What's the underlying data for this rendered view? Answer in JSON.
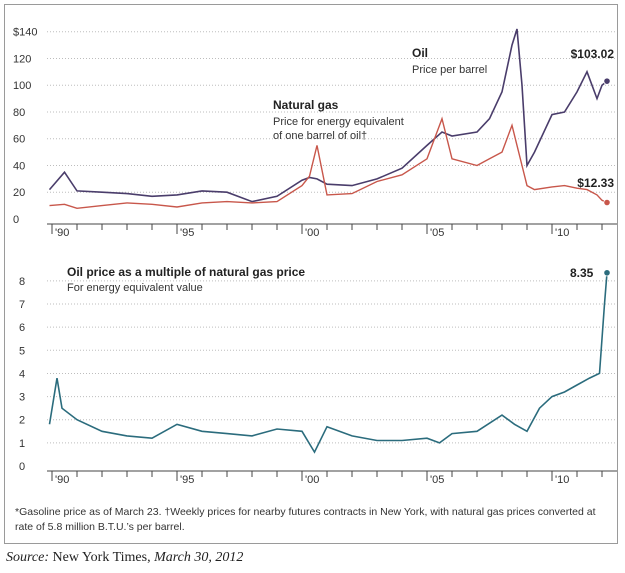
{
  "chart_data": [
    {
      "type": "line",
      "x": [
        1989.9,
        1990.5,
        1991,
        1992,
        1993,
        1994,
        1995,
        1996,
        1997,
        1998,
        1999,
        2000,
        2000.3,
        2000.6,
        2001,
        2002,
        2003,
        2004,
        2005,
        2005.6,
        2006,
        2007,
        2007.5,
        2008.0,
        2008.4,
        2008.6,
        2008.8,
        2009.0,
        2009.3,
        2010,
        2010.5,
        2011,
        2011.4,
        2011.8,
        2012.0,
        2012.2
      ],
      "series": [
        {
          "name": "Oil",
          "subtitle": "Price per barrel",
          "values": [
            22,
            35,
            21,
            20,
            19,
            17,
            18,
            21,
            20,
            13,
            17,
            29,
            31,
            30,
            26,
            25,
            30,
            38,
            55,
            65,
            62,
            65,
            75,
            95,
            130,
            142,
            100,
            40,
            50,
            78,
            80,
            95,
            110,
            90,
            100,
            103.02
          ],
          "end_label": "$103.02",
          "color": "#4a3d6b"
        },
        {
          "name": "Natural gas",
          "subtitle": "Price for energy equivalent of one barrel of oil†",
          "values": [
            10,
            11,
            8,
            10,
            12,
            11,
            9,
            12,
            13,
            12,
            13,
            25,
            32,
            55,
            18,
            19,
            28,
            33,
            45,
            75,
            45,
            40,
            45,
            50,
            70,
            55,
            40,
            25,
            22,
            24,
            25,
            23,
            22,
            18,
            14,
            12.33
          ],
          "end_label": "$12.33",
          "color": "#c8574b"
        }
      ],
      "yticks": [
        "$140",
        "120",
        "100",
        "80",
        "60",
        "40",
        "20",
        "0"
      ],
      "ylim": [
        0,
        145
      ],
      "xlim": [
        1989.8,
        2012.6
      ]
    },
    {
      "type": "line",
      "title": "Oil price as a multiple of natural gas price",
      "subtitle": "For energy equivalent value",
      "x": [
        1989.9,
        1990.2,
        1990.4,
        1991,
        1992,
        1993,
        1994,
        1995,
        1996,
        1997,
        1998,
        1999,
        2000,
        2000.5,
        2001,
        2002,
        2003,
        2004,
        2005,
        2005.5,
        2006,
        2007,
        2008,
        2008.5,
        2009,
        2009.5,
        2010,
        2010.5,
        2011,
        2011.5,
        2011.9,
        2012.1,
        2012.2
      ],
      "series": [
        {
          "values": [
            1.8,
            3.8,
            2.5,
            2.0,
            1.5,
            1.3,
            1.2,
            1.8,
            1.5,
            1.4,
            1.3,
            1.6,
            1.5,
            0.6,
            1.7,
            1.3,
            1.1,
            1.1,
            1.2,
            1.0,
            1.4,
            1.5,
            2.2,
            1.8,
            1.5,
            2.5,
            3.0,
            3.2,
            3.5,
            3.8,
            4.0,
            7.0,
            8.35
          ],
          "end_label": "8.35",
          "color": "#2b6c7d"
        }
      ],
      "yticks": [
        "8",
        "7",
        "6",
        "5",
        "4",
        "3",
        "2",
        "1",
        "0"
      ],
      "ylim": [
        0,
        8.6
      ],
      "xlim": [
        1989.8,
        2012.6
      ]
    }
  ],
  "xaxis": {
    "tick_labels": [
      "'90",
      "'95",
      "'00",
      "'05",
      "'10"
    ],
    "tick_years": [
      1990,
      1995,
      2000,
      2005,
      2010
    ]
  },
  "footnote": "*Gasoline price as of March 23.   †Weekly prices for nearby futures contracts in New York, with natural gas prices converted at rate of 5.8 million B.T.U.’s per barrel.",
  "source": {
    "label": "Source:",
    "publisher": "New York Times,",
    "date": "March 30, 2012"
  },
  "colors": {
    "oil": "#4a3d6b",
    "gas": "#c8574b",
    "ratio": "#2b6c7d",
    "grid": "#bdbdbd",
    "axis": "#444444"
  }
}
